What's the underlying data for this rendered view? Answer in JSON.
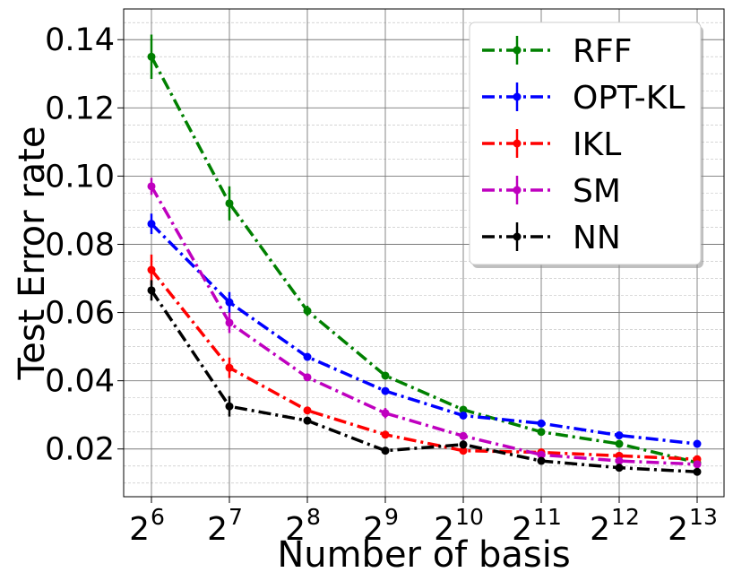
{
  "chart_data": {
    "type": "line",
    "xlabel": "Number of basis",
    "ylabel": "Test Error rate",
    "x_exponents": [
      6,
      7,
      8,
      9,
      10,
      11,
      12,
      13
    ],
    "x_tick_base": "2",
    "x_tick_exps": [
      "6",
      "7",
      "8",
      "9",
      "10",
      "11",
      "12",
      "13"
    ],
    "ylim": [
      0.006,
      0.149
    ],
    "y_ticks": [
      0.02,
      0.04,
      0.06,
      0.08,
      0.1,
      0.12,
      0.14
    ],
    "y_tick_labels": [
      "0.02",
      "0.04",
      "0.06",
      "0.08",
      "0.10",
      "0.12",
      "0.14"
    ],
    "grid": true,
    "legend_position": "top-right",
    "series": [
      {
        "name": "RFF",
        "color": "#008000",
        "dash": "dashdot",
        "values": [
          0.135,
          0.092,
          0.0605,
          0.0415,
          0.0315,
          0.025,
          0.0215,
          0.016
        ],
        "errors": [
          0.0065,
          0.005,
          0.0015,
          0.001,
          0.001,
          0.001,
          0.0008,
          0.0008
        ]
      },
      {
        "name": "OPT-KL",
        "color": "#0000ff",
        "dash": "dashdot",
        "values": [
          0.086,
          0.063,
          0.047,
          0.037,
          0.0298,
          0.0275,
          0.024,
          0.0215
        ],
        "errors": [
          0.003,
          0.003,
          0.001,
          0.001,
          0.001,
          0.001,
          0.001,
          0.0008
        ]
      },
      {
        "name": "IKL",
        "color": "#ff0000",
        "dash": "dashdot",
        "values": [
          0.0725,
          0.0438,
          0.0313,
          0.0242,
          0.0195,
          0.019,
          0.018,
          0.017
        ],
        "errors": [
          0.0045,
          0.003,
          0.001,
          0.001,
          0.0008,
          0.0008,
          0.0008,
          0.0008
        ]
      },
      {
        "name": "SM",
        "color": "#bf00bf",
        "dash": "dashdot",
        "values": [
          0.097,
          0.057,
          0.041,
          0.0305,
          0.0238,
          0.0183,
          0.0165,
          0.0155
        ],
        "errors": [
          0.0025,
          0.003,
          0.001,
          0.0015,
          0.001,
          0.001,
          0.0008,
          0.0008
        ]
      },
      {
        "name": "NN",
        "color": "#000000",
        "dash": "dashdot",
        "values": [
          0.0665,
          0.0325,
          0.0283,
          0.0195,
          0.0213,
          0.0165,
          0.0145,
          0.0133
        ],
        "errors": [
          0.003,
          0.003,
          0.001,
          0.0008,
          0.0012,
          0.0008,
          0.0008,
          0.0008
        ]
      }
    ]
  }
}
